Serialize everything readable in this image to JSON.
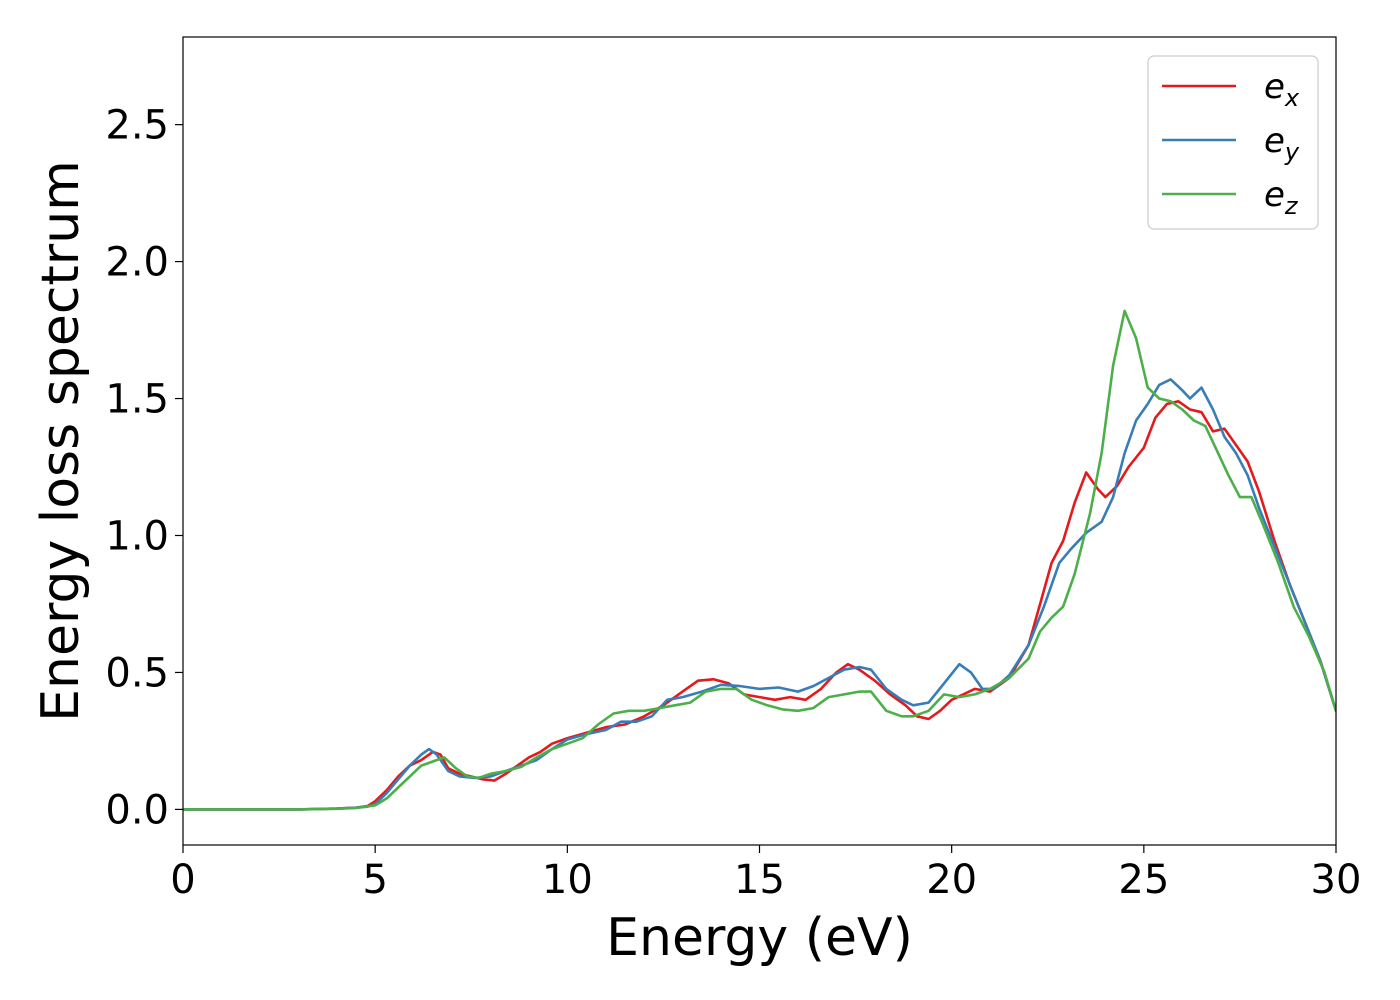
{
  "chart_data": {
    "type": "line",
    "title": "",
    "xlabel": "Energy (eV)",
    "ylabel": "Energy loss spectrum",
    "xlim": [
      0,
      30
    ],
    "ylim": [
      -0.13,
      2.82
    ],
    "xticks": [
      0,
      5,
      10,
      15,
      20,
      25,
      30
    ],
    "xtick_labels": [
      "0",
      "5",
      "10",
      "15",
      "20",
      "25",
      "30"
    ],
    "yticks": [
      0.0,
      0.5,
      1.0,
      1.5,
      2.0,
      2.5
    ],
    "ytick_labels": [
      "0.0",
      "0.5",
      "1.0",
      "1.5",
      "2.0",
      "2.5"
    ],
    "grid": false,
    "legend_position": "top-right",
    "series": [
      {
        "name": "e",
        "subscript": "x",
        "color": "#e41a1c",
        "points": [
          [
            0,
            0
          ],
          [
            1,
            0
          ],
          [
            2,
            0
          ],
          [
            3,
            0
          ],
          [
            4,
            0.003
          ],
          [
            4.5,
            0.006
          ],
          [
            4.8,
            0.012
          ],
          [
            5.0,
            0.03
          ],
          [
            5.3,
            0.07
          ],
          [
            5.6,
            0.12
          ],
          [
            5.9,
            0.16
          ],
          [
            6.2,
            0.18
          ],
          [
            6.5,
            0.21
          ],
          [
            6.7,
            0.2
          ],
          [
            6.9,
            0.15
          ],
          [
            7.2,
            0.13
          ],
          [
            7.5,
            0.12
          ],
          [
            7.8,
            0.11
          ],
          [
            8.1,
            0.105
          ],
          [
            8.4,
            0.13
          ],
          [
            8.7,
            0.16
          ],
          [
            9.0,
            0.19
          ],
          [
            9.3,
            0.21
          ],
          [
            9.6,
            0.24
          ],
          [
            10.0,
            0.26
          ],
          [
            10.5,
            0.28
          ],
          [
            11.0,
            0.3
          ],
          [
            11.5,
            0.31
          ],
          [
            12.0,
            0.34
          ],
          [
            12.5,
            0.38
          ],
          [
            13.0,
            0.43
          ],
          [
            13.4,
            0.47
          ],
          [
            13.8,
            0.475
          ],
          [
            14.2,
            0.46
          ],
          [
            14.6,
            0.42
          ],
          [
            15.0,
            0.41
          ],
          [
            15.4,
            0.4
          ],
          [
            15.8,
            0.41
          ],
          [
            16.2,
            0.4
          ],
          [
            16.6,
            0.44
          ],
          [
            17.0,
            0.5
          ],
          [
            17.3,
            0.53
          ],
          [
            17.6,
            0.51
          ],
          [
            18.0,
            0.47
          ],
          [
            18.4,
            0.42
          ],
          [
            18.8,
            0.38
          ],
          [
            19.1,
            0.34
          ],
          [
            19.4,
            0.33
          ],
          [
            19.7,
            0.36
          ],
          [
            20.0,
            0.4
          ],
          [
            20.3,
            0.42
          ],
          [
            20.6,
            0.44
          ],
          [
            21.0,
            0.43
          ],
          [
            21.5,
            0.48
          ],
          [
            22.0,
            0.6
          ],
          [
            22.3,
            0.75
          ],
          [
            22.6,
            0.9
          ],
          [
            22.9,
            0.98
          ],
          [
            23.2,
            1.12
          ],
          [
            23.5,
            1.23
          ],
          [
            23.8,
            1.17
          ],
          [
            24.0,
            1.14
          ],
          [
            24.3,
            1.18
          ],
          [
            24.6,
            1.25
          ],
          [
            25.0,
            1.32
          ],
          [
            25.3,
            1.43
          ],
          [
            25.6,
            1.48
          ],
          [
            25.9,
            1.49
          ],
          [
            26.2,
            1.46
          ],
          [
            26.5,
            1.45
          ],
          [
            26.8,
            1.38
          ],
          [
            27.1,
            1.39
          ],
          [
            27.4,
            1.33
          ],
          [
            27.7,
            1.27
          ],
          [
            28.0,
            1.16
          ],
          [
            28.4,
            0.98
          ],
          [
            28.8,
            0.82
          ],
          [
            29.2,
            0.68
          ],
          [
            29.6,
            0.54
          ],
          [
            30.0,
            0.36
          ]
        ]
      },
      {
        "name": "e",
        "subscript": "y",
        "color": "#377eb8",
        "points": [
          [
            0,
            0
          ],
          [
            1,
            0
          ],
          [
            2,
            0
          ],
          [
            3,
            0
          ],
          [
            4,
            0.003
          ],
          [
            4.5,
            0.006
          ],
          [
            4.8,
            0.01
          ],
          [
            5.0,
            0.02
          ],
          [
            5.3,
            0.06
          ],
          [
            5.6,
            0.11
          ],
          [
            5.9,
            0.16
          ],
          [
            6.2,
            0.2
          ],
          [
            6.4,
            0.22
          ],
          [
            6.6,
            0.2
          ],
          [
            6.9,
            0.14
          ],
          [
            7.2,
            0.12
          ],
          [
            7.6,
            0.115
          ],
          [
            8.0,
            0.12
          ],
          [
            8.4,
            0.14
          ],
          [
            8.8,
            0.16
          ],
          [
            9.2,
            0.18
          ],
          [
            9.6,
            0.22
          ],
          [
            10.0,
            0.255
          ],
          [
            10.5,
            0.275
          ],
          [
            11.0,
            0.29
          ],
          [
            11.4,
            0.32
          ],
          [
            11.8,
            0.32
          ],
          [
            12.2,
            0.34
          ],
          [
            12.6,
            0.4
          ],
          [
            13.0,
            0.41
          ],
          [
            13.5,
            0.43
          ],
          [
            14.0,
            0.455
          ],
          [
            14.5,
            0.45
          ],
          [
            15.0,
            0.44
          ],
          [
            15.5,
            0.445
          ],
          [
            16.0,
            0.43
          ],
          [
            16.4,
            0.45
          ],
          [
            16.8,
            0.48
          ],
          [
            17.2,
            0.51
          ],
          [
            17.6,
            0.52
          ],
          [
            17.9,
            0.51
          ],
          [
            18.3,
            0.44
          ],
          [
            18.7,
            0.4
          ],
          [
            19.0,
            0.38
          ],
          [
            19.4,
            0.39
          ],
          [
            19.8,
            0.46
          ],
          [
            20.2,
            0.53
          ],
          [
            20.5,
            0.5
          ],
          [
            20.8,
            0.44
          ],
          [
            21.1,
            0.44
          ],
          [
            21.5,
            0.49
          ],
          [
            22.0,
            0.6
          ],
          [
            22.4,
            0.74
          ],
          [
            22.8,
            0.9
          ],
          [
            23.1,
            0.95
          ],
          [
            23.5,
            1.01
          ],
          [
            23.9,
            1.05
          ],
          [
            24.2,
            1.14
          ],
          [
            24.5,
            1.3
          ],
          [
            24.8,
            1.42
          ],
          [
            25.1,
            1.48
          ],
          [
            25.4,
            1.55
          ],
          [
            25.7,
            1.57
          ],
          [
            26.0,
            1.53
          ],
          [
            26.2,
            1.5
          ],
          [
            26.5,
            1.54
          ],
          [
            26.8,
            1.46
          ],
          [
            27.1,
            1.36
          ],
          [
            27.4,
            1.3
          ],
          [
            27.7,
            1.22
          ],
          [
            28.0,
            1.1
          ],
          [
            28.4,
            0.96
          ],
          [
            28.8,
            0.82
          ],
          [
            29.2,
            0.68
          ],
          [
            29.6,
            0.54
          ],
          [
            30.0,
            0.36
          ]
        ]
      },
      {
        "name": "e",
        "subscript": "z",
        "color": "#4daf4a",
        "points": [
          [
            0,
            0
          ],
          [
            1,
            0
          ],
          [
            2,
            0
          ],
          [
            3,
            0
          ],
          [
            4,
            0.002
          ],
          [
            4.5,
            0.005
          ],
          [
            5.0,
            0.015
          ],
          [
            5.3,
            0.04
          ],
          [
            5.6,
            0.08
          ],
          [
            5.9,
            0.12
          ],
          [
            6.2,
            0.16
          ],
          [
            6.5,
            0.175
          ],
          [
            6.8,
            0.19
          ],
          [
            7.1,
            0.15
          ],
          [
            7.4,
            0.12
          ],
          [
            7.7,
            0.115
          ],
          [
            8.0,
            0.13
          ],
          [
            8.4,
            0.14
          ],
          [
            8.8,
            0.155
          ],
          [
            9.2,
            0.19
          ],
          [
            9.6,
            0.22
          ],
          [
            10.0,
            0.24
          ],
          [
            10.4,
            0.26
          ],
          [
            10.8,
            0.31
          ],
          [
            11.2,
            0.35
          ],
          [
            11.6,
            0.36
          ],
          [
            12.0,
            0.36
          ],
          [
            12.4,
            0.37
          ],
          [
            12.8,
            0.38
          ],
          [
            13.2,
            0.39
          ],
          [
            13.6,
            0.43
          ],
          [
            14.0,
            0.44
          ],
          [
            14.4,
            0.44
          ],
          [
            14.8,
            0.4
          ],
          [
            15.2,
            0.38
          ],
          [
            15.6,
            0.365
          ],
          [
            16.0,
            0.36
          ],
          [
            16.4,
            0.37
          ],
          [
            16.8,
            0.41
          ],
          [
            17.2,
            0.42
          ],
          [
            17.6,
            0.43
          ],
          [
            17.9,
            0.43
          ],
          [
            18.3,
            0.36
          ],
          [
            18.7,
            0.34
          ],
          [
            19.0,
            0.34
          ],
          [
            19.4,
            0.36
          ],
          [
            19.8,
            0.42
          ],
          [
            20.2,
            0.41
          ],
          [
            20.6,
            0.42
          ],
          [
            21.0,
            0.44
          ],
          [
            21.5,
            0.48
          ],
          [
            22.0,
            0.55
          ],
          [
            22.3,
            0.65
          ],
          [
            22.6,
            0.7
          ],
          [
            22.9,
            0.74
          ],
          [
            23.2,
            0.86
          ],
          [
            23.6,
            1.08
          ],
          [
            23.9,
            1.3
          ],
          [
            24.2,
            1.62
          ],
          [
            24.5,
            1.82
          ],
          [
            24.8,
            1.72
          ],
          [
            25.1,
            1.54
          ],
          [
            25.4,
            1.5
          ],
          [
            25.7,
            1.49
          ],
          [
            26.0,
            1.46
          ],
          [
            26.3,
            1.42
          ],
          [
            26.6,
            1.4
          ],
          [
            26.9,
            1.31
          ],
          [
            27.2,
            1.22
          ],
          [
            27.5,
            1.14
          ],
          [
            27.8,
            1.14
          ],
          [
            28.1,
            1.04
          ],
          [
            28.5,
            0.9
          ],
          [
            28.9,
            0.74
          ],
          [
            29.3,
            0.63
          ],
          [
            29.7,
            0.5
          ],
          [
            30.0,
            0.36
          ]
        ]
      }
    ]
  }
}
